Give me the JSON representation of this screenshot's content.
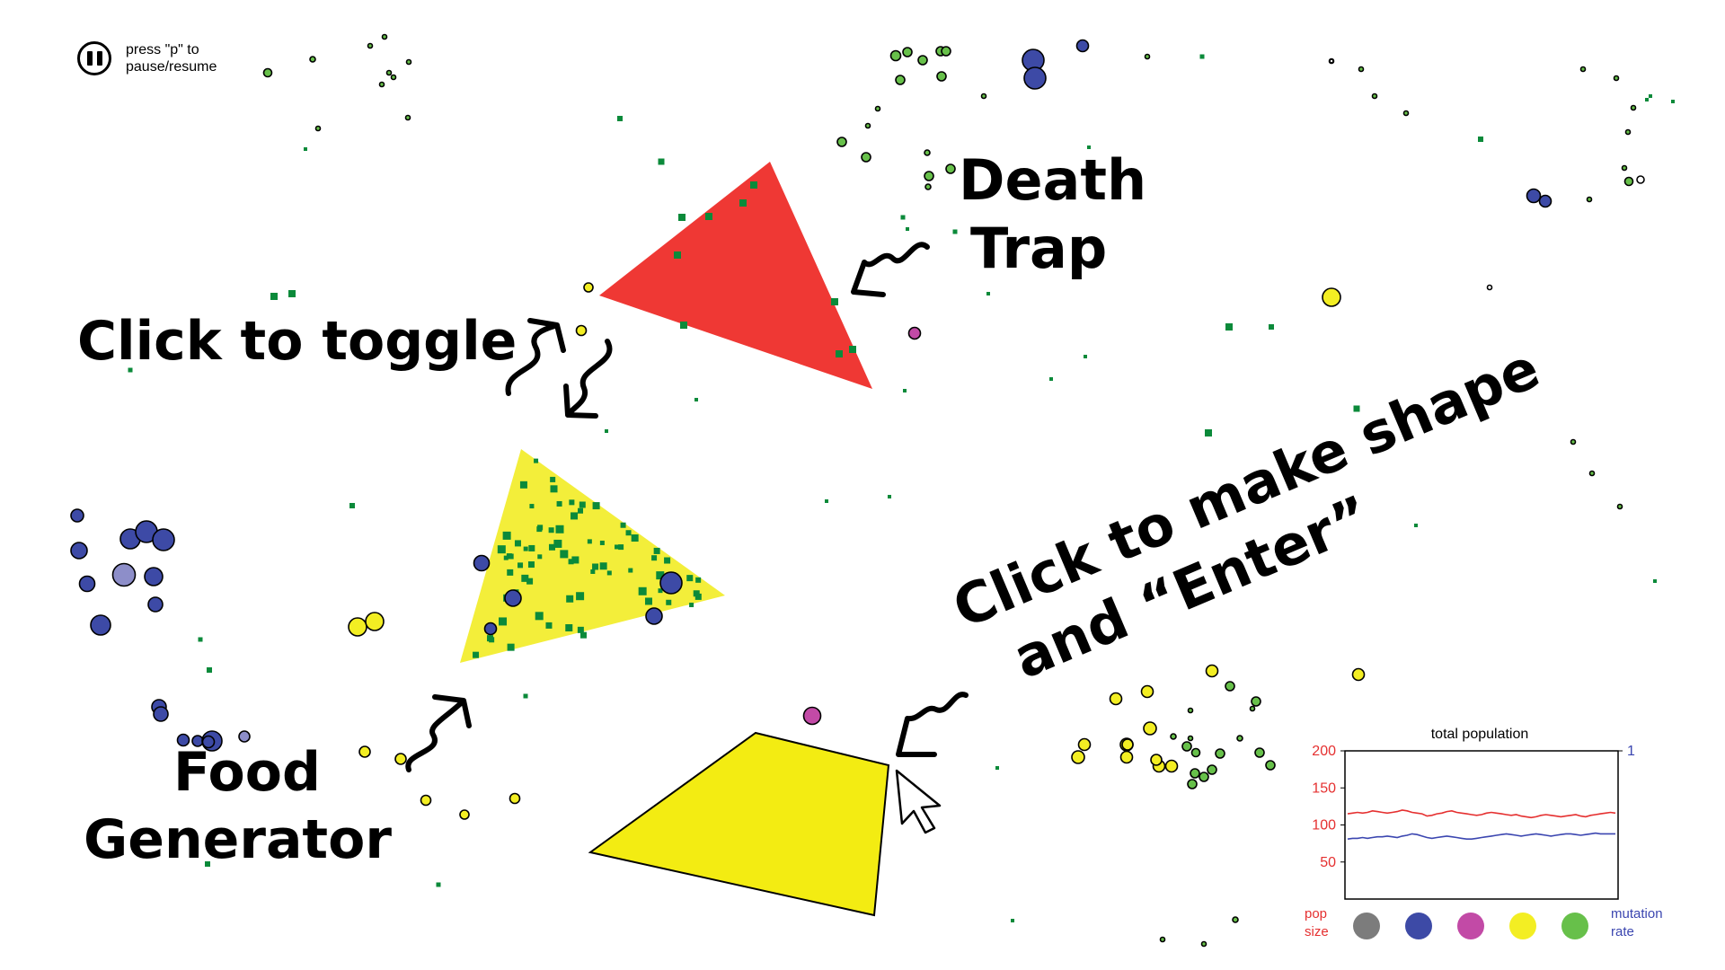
{
  "pause": {
    "label": "press \"p\" to pause/resume"
  },
  "annotations": {
    "death_trap_line1": "Death",
    "death_trap_line2": "Trap",
    "toggle": "Click to toggle",
    "food_line1": "Food",
    "food_line2": "Generator",
    "make_shape_line1": "Click to make shape",
    "make_shape_line2": "and “Enter”"
  },
  "colors": {
    "death_trap": "#ef3834",
    "food_generator": "#f3ee3a",
    "food": "#0b8a3a",
    "species_gray": "#7c7c7c",
    "species_blue": "#3d4aa6",
    "species_magenta": "#c24aa6",
    "species_yellow": "#f3ee23",
    "species_green": "#67c04a",
    "pop_line": "#e53030",
    "mutation_line": "#3b46b0"
  },
  "chart_data": {
    "type": "line",
    "title": "total population",
    "ylabel_left": "pop size",
    "ylabel_right": "mutation rate",
    "ylim_left": [
      0,
      200
    ],
    "ylim_right": [
      0,
      1
    ],
    "left_ticks": [
      50,
      100,
      150,
      200
    ],
    "right_ticks": [
      1
    ],
    "series": [
      {
        "axis": "left",
        "values": [
          115,
          116,
          117,
          116,
          117,
          119,
          118,
          117,
          116,
          117,
          118,
          120,
          119,
          117,
          116,
          115,
          112,
          113,
          115,
          116,
          118,
          119,
          117,
          116,
          115,
          114,
          113,
          114,
          116,
          117,
          116,
          115,
          114,
          113,
          114,
          112,
          111,
          110,
          111,
          113,
          114,
          113,
          112,
          111,
          112,
          113,
          114,
          112,
          111,
          113,
          114,
          115,
          116,
          117,
          116
        ]
      },
      {
        "axis": "left",
        "values": [
          81,
          82,
          82,
          83,
          82,
          83,
          84,
          84,
          85,
          84,
          83,
          85,
          86,
          88,
          87,
          85,
          83,
          82,
          83,
          84,
          85,
          84,
          83,
          82,
          81,
          81,
          82,
          83,
          84,
          85,
          86,
          87,
          88,
          87,
          86,
          85,
          86,
          87,
          88,
          87,
          86,
          85,
          86,
          87,
          88,
          88,
          87,
          86,
          87,
          88,
          89,
          88,
          88,
          88,
          88
        ]
      }
    ],
    "legend": {
      "left_label": "pop size",
      "right_label": "mutation rate",
      "species_colors": [
        "#7c7c7c",
        "#3d4aa6",
        "#c24aa6",
        "#f3ee23",
        "#67c04a"
      ]
    }
  }
}
